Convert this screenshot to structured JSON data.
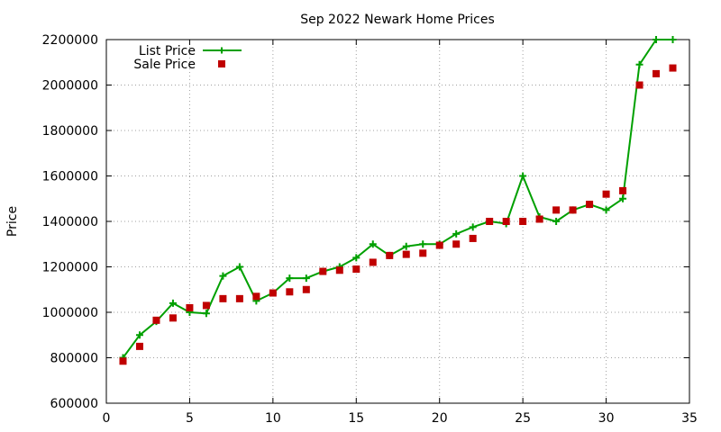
{
  "chart_data": {
    "type": "line",
    "title": "Sep 2022 Newark Home Prices",
    "xlabel": "",
    "ylabel": "Price",
    "xlim": [
      0,
      35
    ],
    "ylim": [
      600000,
      2200000
    ],
    "x_ticks": [
      0,
      5,
      10,
      15,
      20,
      25,
      30,
      35
    ],
    "y_ticks": [
      600000,
      800000,
      1000000,
      1200000,
      1400000,
      1600000,
      1800000,
      2000000,
      2200000
    ],
    "grid": true,
    "legend_position": "top-left",
    "series": [
      {
        "name": "List Price",
        "style": "line+cross",
        "color": "#00a000",
        "x": [
          1,
          2,
          3,
          4,
          5,
          6,
          7,
          8,
          9,
          10,
          11,
          12,
          13,
          14,
          15,
          16,
          17,
          18,
          19,
          20,
          21,
          22,
          23,
          24,
          25,
          26,
          27,
          28,
          29,
          30,
          31,
          32,
          33,
          34
        ],
        "y": [
          800000,
          900000,
          960000,
          1040000,
          1000000,
          995000,
          1160000,
          1200000,
          1050000,
          1085000,
          1150000,
          1150000,
          1180000,
          1200000,
          1240000,
          1300000,
          1250000,
          1290000,
          1300000,
          1300000,
          1345000,
          1375000,
          1400000,
          1390000,
          1600000,
          1420000,
          1400000,
          1450000,
          1475000,
          1450000,
          1500000,
          2090000,
          2200000,
          2200000
        ]
      },
      {
        "name": "Sale Price",
        "style": "square",
        "color": "#c00000",
        "x": [
          1,
          2,
          3,
          4,
          5,
          6,
          7,
          8,
          9,
          10,
          11,
          12,
          13,
          14,
          15,
          16,
          17,
          18,
          19,
          20,
          21,
          22,
          23,
          24,
          25,
          26,
          27,
          28,
          29,
          30,
          31,
          32,
          33,
          34
        ],
        "y": [
          785000,
          850000,
          965000,
          975000,
          1020000,
          1030000,
          1060000,
          1060000,
          1070000,
          1085000,
          1090000,
          1100000,
          1180000,
          1185000,
          1190000,
          1220000,
          1250000,
          1255000,
          1260000,
          1295000,
          1300000,
          1325000,
          1400000,
          1400000,
          1400000,
          1410000,
          1450000,
          1450000,
          1475000,
          1520000,
          1535000,
          2000000,
          2050000,
          2075000
        ]
      }
    ]
  }
}
